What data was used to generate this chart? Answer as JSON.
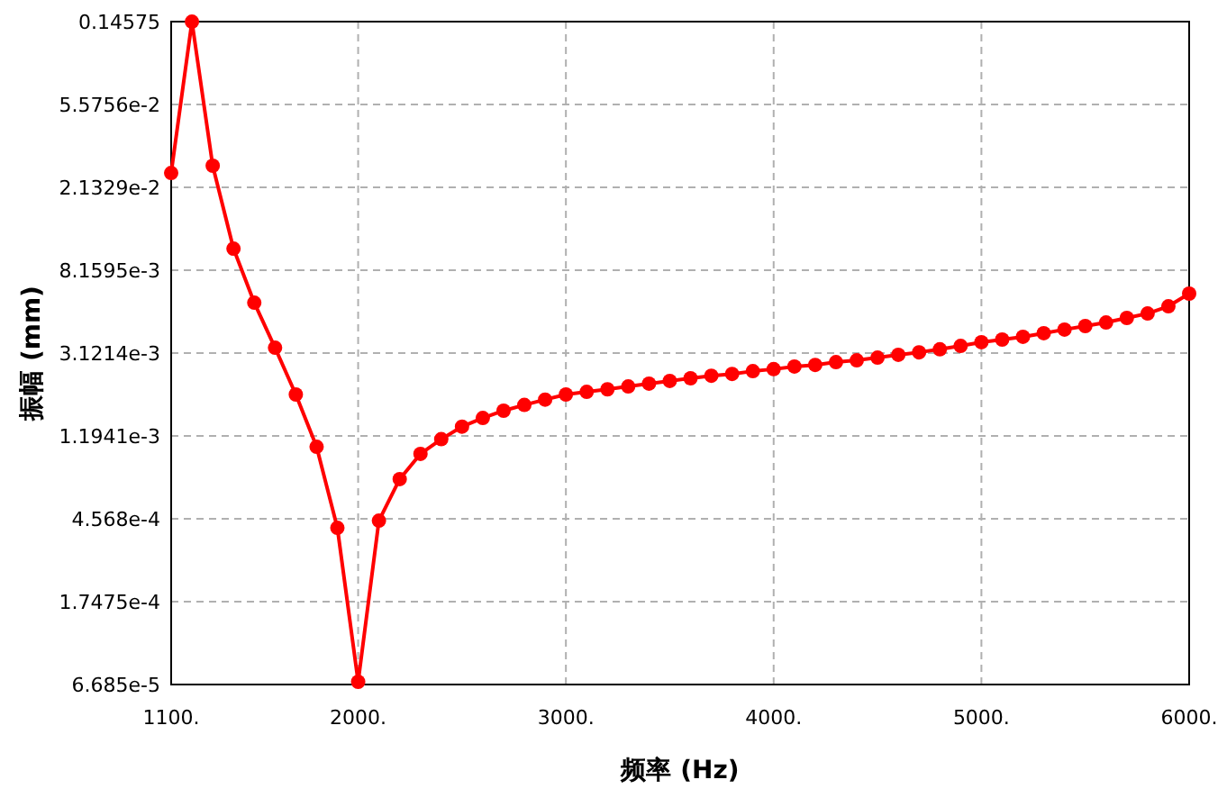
{
  "chart_data": {
    "type": "line",
    "xlabel": "频率 (Hz)",
    "ylabel": "振幅 (mm)",
    "log": "y",
    "grid": true,
    "marker": "circle",
    "line_style": "solid",
    "x": [
      1100,
      1200,
      1300,
      1400,
      1500,
      1600,
      1700,
      1800,
      1900,
      2000,
      2100,
      2200,
      2300,
      2400,
      2500,
      2600,
      2700,
      2800,
      2900,
      3000,
      3100,
      3200,
      3300,
      3400,
      3500,
      3600,
      3700,
      3800,
      3900,
      4000,
      4100,
      4200,
      4300,
      4400,
      4500,
      4600,
      4700,
      4800,
      4900,
      5000,
      5100,
      5200,
      5300,
      5400,
      5500,
      5600,
      5700,
      5800,
      5900,
      6000
    ],
    "series": [
      {
        "color": "#ff0000",
        "values": [
          0.0252,
          0.1457,
          0.0274,
          0.01048,
          0.0056,
          0.00332,
          0.00193,
          0.001053,
          0.000411,
          6.9e-05,
          0.000447,
          0.000724,
          0.00097,
          0.00115,
          0.00133,
          0.00147,
          0.0016,
          0.00171,
          0.00182,
          0.00193,
          0.00199,
          0.00205,
          0.00212,
          0.00219,
          0.00226,
          0.00233,
          0.0024,
          0.00245,
          0.00253,
          0.00259,
          0.00267,
          0.00272,
          0.00281,
          0.00287,
          0.00296,
          0.00306,
          0.00315,
          0.00326,
          0.00339,
          0.00354,
          0.00365,
          0.00377,
          0.00393,
          0.0041,
          0.00427,
          0.00445,
          0.00469,
          0.00494,
          0.00537,
          0.00622
        ]
      }
    ],
    "xlim": [
      1100,
      6000
    ],
    "xticks": [
      {
        "value": 1100,
        "label": "1100."
      },
      {
        "value": 2000,
        "label": "2000."
      },
      {
        "value": 3000,
        "label": "3000."
      },
      {
        "value": 4000,
        "label": "4000."
      },
      {
        "value": 5000,
        "label": "5000."
      },
      {
        "value": 6000,
        "label": "6000."
      }
    ],
    "ylim": [
      6.685e-05,
      0.14575
    ],
    "yticks": [
      {
        "value": 6.685e-05,
        "label": "6.685e-5"
      },
      {
        "value": 0.00017475,
        "label": "1.7475e-4"
      },
      {
        "value": 0.0004568,
        "label": "4.568e-4"
      },
      {
        "value": 0.0011941,
        "label": "1.1941e-3"
      },
      {
        "value": 0.0031214,
        "label": "3.1214e-3"
      },
      {
        "value": 0.0081595,
        "label": "8.1595e-3"
      },
      {
        "value": 0.021329,
        "label": "2.1329e-2"
      },
      {
        "value": 0.055756,
        "label": "5.5756e-2"
      },
      0.14575
    ]
  }
}
